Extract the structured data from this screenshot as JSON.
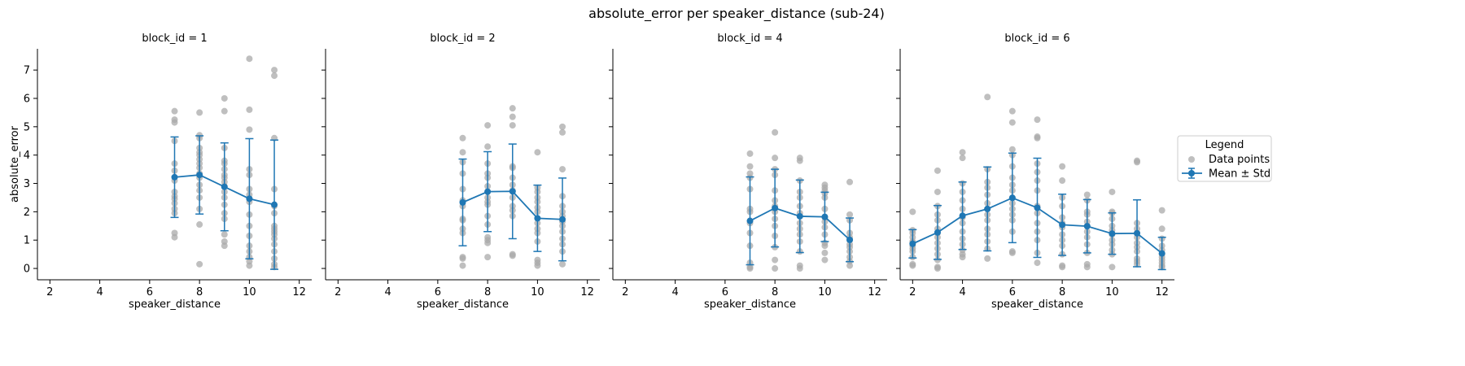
{
  "figure": {
    "suptitle": "absolute_error per speaker_distance (sub-24)"
  },
  "legend": {
    "title": "Legend",
    "items": [
      {
        "label": "Data points",
        "color": "#a9a9a9"
      },
      {
        "label": "Mean ± Std",
        "color": "#1f77b4"
      }
    ],
    "placement": "right"
  },
  "chart_data": [
    {
      "type": "scatter",
      "title": "block_id = 1",
      "xlabel": "speaker_distance",
      "ylabel": "absolute_error",
      "xlim": [
        1.5,
        12.5
      ],
      "ylim": [
        -0.4,
        7.75
      ],
      "xticks": [
        2,
        4,
        6,
        8,
        10,
        12
      ],
      "yticks": [
        0,
        1,
        2,
        3,
        4,
        5,
        6,
        7
      ],
      "grid": false,
      "points": [
        {
          "x": 7,
          "y": [
            5.55,
            5.25,
            5.15,
            4.5,
            3.7,
            3.45,
            3.1,
            2.7,
            2.55,
            2.45,
            2.3,
            2.1,
            1.95,
            1.25,
            1.1
          ]
        },
        {
          "x": 8,
          "y": [
            5.5,
            4.7,
            4.6,
            4.25,
            4.1,
            4.0,
            3.85,
            3.7,
            3.55,
            3.35,
            3.2,
            2.95,
            2.75,
            2.5,
            2.1,
            1.55,
            0.15
          ]
        },
        {
          "x": 9,
          "y": [
            6.0,
            5.55,
            4.25,
            3.8,
            3.7,
            3.5,
            3.3,
            3.2,
            3.05,
            2.9,
            2.7,
            2.5,
            2.25,
            1.95,
            1.75,
            1.2,
            0.95,
            0.8
          ]
        },
        {
          "x": 10,
          "y": [
            7.4,
            5.6,
            4.9,
            3.5,
            3.3,
            2.8,
            2.6,
            2.35,
            1.9,
            1.5,
            1.15,
            0.8,
            0.6,
            0.4,
            0.25,
            0.1
          ]
        },
        {
          "x": 11,
          "y": [
            7.0,
            6.8,
            4.6,
            2.8,
            2.2,
            1.95,
            1.5,
            1.4,
            1.3,
            1.2,
            1.05,
            0.85,
            0.6,
            0.35,
            0.15,
            0.05
          ]
        }
      ],
      "mean_std": [
        {
          "x": 7,
          "mean": 3.22,
          "std": 1.42
        },
        {
          "x": 8,
          "mean": 3.3,
          "std": 1.38
        },
        {
          "x": 9,
          "mean": 2.88,
          "std": 1.55
        },
        {
          "x": 10,
          "mean": 2.46,
          "std": 2.12
        },
        {
          "x": 11,
          "mean": 2.25,
          "std": 2.28
        }
      ]
    },
    {
      "type": "scatter",
      "title": "block_id = 2",
      "xlabel": "speaker_distance",
      "ylabel": "",
      "xlim": [
        1.5,
        12.5
      ],
      "ylim": [
        -0.4,
        7.75
      ],
      "xticks": [
        2,
        4,
        6,
        8,
        10,
        12
      ],
      "yticks": [
        0,
        1,
        2,
        3,
        4,
        5,
        6,
        7
      ],
      "grid": false,
      "points": [
        {
          "x": 7,
          "y": [
            4.6,
            4.1,
            3.75,
            3.35,
            2.8,
            2.4,
            2.2,
            1.75,
            1.7,
            1.4,
            1.25,
            0.4,
            0.35,
            0.1
          ]
        },
        {
          "x": 8,
          "y": [
            5.05,
            4.3,
            3.7,
            3.35,
            3.2,
            2.9,
            2.7,
            2.5,
            2.35,
            2.25,
            1.85,
            1.55,
            1.1,
            1.0,
            0.9,
            0.4
          ]
        },
        {
          "x": 9,
          "y": [
            5.65,
            5.35,
            5.05,
            3.6,
            3.55,
            3.2,
            2.95,
            2.75,
            2.5,
            2.2,
            2.05,
            1.85,
            0.5,
            0.45
          ]
        },
        {
          "x": 10,
          "y": [
            4.1,
            2.85,
            2.7,
            2.5,
            2.35,
            2.15,
            2.0,
            1.6,
            1.4,
            1.25,
            0.95,
            0.3,
            0.2,
            0.1
          ]
        },
        {
          "x": 11,
          "y": [
            5.0,
            4.8,
            3.5,
            2.55,
            2.2,
            2.0,
            1.85,
            1.65,
            1.5,
            1.3,
            1.05,
            0.85,
            0.6,
            0.15
          ]
        }
      ],
      "mean_std": [
        {
          "x": 7,
          "mean": 2.33,
          "std": 1.53
        },
        {
          "x": 8,
          "mean": 2.71,
          "std": 1.41
        },
        {
          "x": 9,
          "mean": 2.72,
          "std": 1.67
        },
        {
          "x": 10,
          "mean": 1.77,
          "std": 1.17
        },
        {
          "x": 11,
          "mean": 1.73,
          "std": 1.46
        }
      ]
    },
    {
      "type": "scatter",
      "title": "block_id = 4",
      "xlabel": "speaker_distance",
      "ylabel": "",
      "xlim": [
        1.5,
        12.5
      ],
      "ylim": [
        -0.4,
        7.75
      ],
      "xticks": [
        2,
        4,
        6,
        8,
        10,
        12
      ],
      "yticks": [
        0,
        1,
        2,
        3,
        4,
        5,
        6,
        7
      ],
      "grid": false,
      "points": [
        {
          "x": 7,
          "y": [
            4.05,
            3.6,
            3.35,
            3.2,
            2.8,
            2.1,
            2.0,
            1.6,
            1.25,
            0.8,
            0.2,
            0.05,
            0.0
          ]
        },
        {
          "x": 8,
          "y": [
            4.8,
            3.9,
            3.5,
            3.3,
            2.75,
            2.4,
            2.2,
            2.0,
            1.75,
            1.5,
            1.15,
            0.75,
            0.3,
            0.0
          ]
        },
        {
          "x": 9,
          "y": [
            3.9,
            3.8,
            3.1,
            2.7,
            2.5,
            2.2,
            1.95,
            1.6,
            1.4,
            1.2,
            0.95,
            0.6,
            0.1,
            0.0
          ]
        },
        {
          "x": 10,
          "y": [
            2.95,
            2.85,
            2.75,
            2.65,
            2.5,
            2.1,
            1.8,
            1.65,
            1.45,
            1.2,
            0.9,
            0.8,
            0.55,
            0.3
          ]
        },
        {
          "x": 11,
          "y": [
            3.05,
            1.9,
            1.7,
            1.25,
            1.1,
            1.0,
            0.85,
            0.75,
            0.6,
            0.4,
            0.25,
            0.1
          ]
        }
      ],
      "mean_std": [
        {
          "x": 7,
          "mean": 1.68,
          "std": 1.55
        },
        {
          "x": 8,
          "mean": 2.13,
          "std": 1.37
        },
        {
          "x": 9,
          "mean": 1.84,
          "std": 1.28
        },
        {
          "x": 10,
          "mean": 1.82,
          "std": 0.87
        },
        {
          "x": 11,
          "mean": 1.01,
          "std": 0.77
        }
      ]
    },
    {
      "type": "scatter",
      "title": "block_id = 6",
      "xlabel": "speaker_distance",
      "ylabel": "",
      "xlim": [
        1.5,
        12.5
      ],
      "ylim": [
        -0.4,
        7.75
      ],
      "xticks": [
        2,
        4,
        6,
        8,
        10,
        12
      ],
      "yticks": [
        0,
        1,
        2,
        3,
        4,
        5,
        6,
        7
      ],
      "grid": false,
      "points": [
        {
          "x": 2,
          "y": [
            2.0,
            1.35,
            1.25,
            1.1,
            0.95,
            0.9,
            0.8,
            0.7,
            0.6,
            0.4,
            0.15,
            0.1
          ]
        },
        {
          "x": 3,
          "y": [
            3.45,
            2.7,
            2.2,
            1.9,
            1.7,
            1.4,
            1.25,
            1.1,
            0.9,
            0.7,
            0.5,
            0.3,
            0.05,
            0.0
          ]
        },
        {
          "x": 4,
          "y": [
            4.1,
            3.9,
            3.0,
            2.7,
            2.4,
            2.1,
            1.8,
            1.6,
            1.3,
            1.05,
            0.85,
            0.65,
            0.5,
            0.4
          ]
        },
        {
          "x": 5,
          "y": [
            6.05,
            3.5,
            3.05,
            2.85,
            2.6,
            2.3,
            2.1,
            1.9,
            1.7,
            1.4,
            1.2,
            0.95,
            0.7,
            0.35
          ]
        },
        {
          "x": 6,
          "y": [
            5.55,
            5.15,
            4.2,
            4.0,
            3.6,
            3.2,
            2.95,
            2.75,
            2.5,
            2.3,
            2.1,
            1.9,
            1.7,
            1.3,
            0.6,
            0.55
          ]
        },
        {
          "x": 7,
          "y": [
            5.25,
            4.65,
            4.6,
            3.7,
            3.4,
            3.1,
            2.75,
            2.2,
            1.95,
            1.6,
            1.3,
            1.0,
            0.55,
            0.2
          ]
        },
        {
          "x": 8,
          "y": [
            3.6,
            3.1,
            2.5,
            2.2,
            1.8,
            1.6,
            1.45,
            1.2,
            1.0,
            0.8,
            0.5,
            0.1,
            0.05
          ]
        },
        {
          "x": 9,
          "y": [
            2.6,
            2.4,
            2.0,
            1.9,
            1.65,
            1.5,
            1.3,
            1.1,
            0.85,
            0.55,
            0.15,
            0.05
          ]
        },
        {
          "x": 10,
          "y": [
            2.7,
            2.0,
            1.95,
            1.75,
            1.5,
            1.35,
            1.2,
            1.0,
            0.85,
            0.65,
            0.5,
            0.05
          ]
        },
        {
          "x": 11,
          "y": [
            3.8,
            3.75,
            1.6,
            1.4,
            1.25,
            1.1,
            0.9,
            0.75,
            0.6,
            0.35,
            0.25,
            0.15
          ]
        },
        {
          "x": 12,
          "y": [
            2.05,
            1.4,
            1.05,
            0.8,
            0.65,
            0.5,
            0.4,
            0.3,
            0.2,
            0.1,
            0.05
          ]
        }
      ],
      "mean_std": [
        {
          "x": 2,
          "mean": 0.87,
          "std": 0.5
        },
        {
          "x": 3,
          "mean": 1.27,
          "std": 0.95
        },
        {
          "x": 4,
          "mean": 1.86,
          "std": 1.19
        },
        {
          "x": 5,
          "mean": 2.1,
          "std": 1.48
        },
        {
          "x": 6,
          "mean": 2.49,
          "std": 1.58
        },
        {
          "x": 7,
          "mean": 2.14,
          "std": 1.75
        },
        {
          "x": 8,
          "mean": 1.54,
          "std": 1.08
        },
        {
          "x": 9,
          "mean": 1.49,
          "std": 0.94
        },
        {
          "x": 10,
          "mean": 1.23,
          "std": 0.73
        },
        {
          "x": 11,
          "mean": 1.24,
          "std": 1.18
        },
        {
          "x": 12,
          "mean": 0.53,
          "std": 0.57
        }
      ]
    }
  ]
}
